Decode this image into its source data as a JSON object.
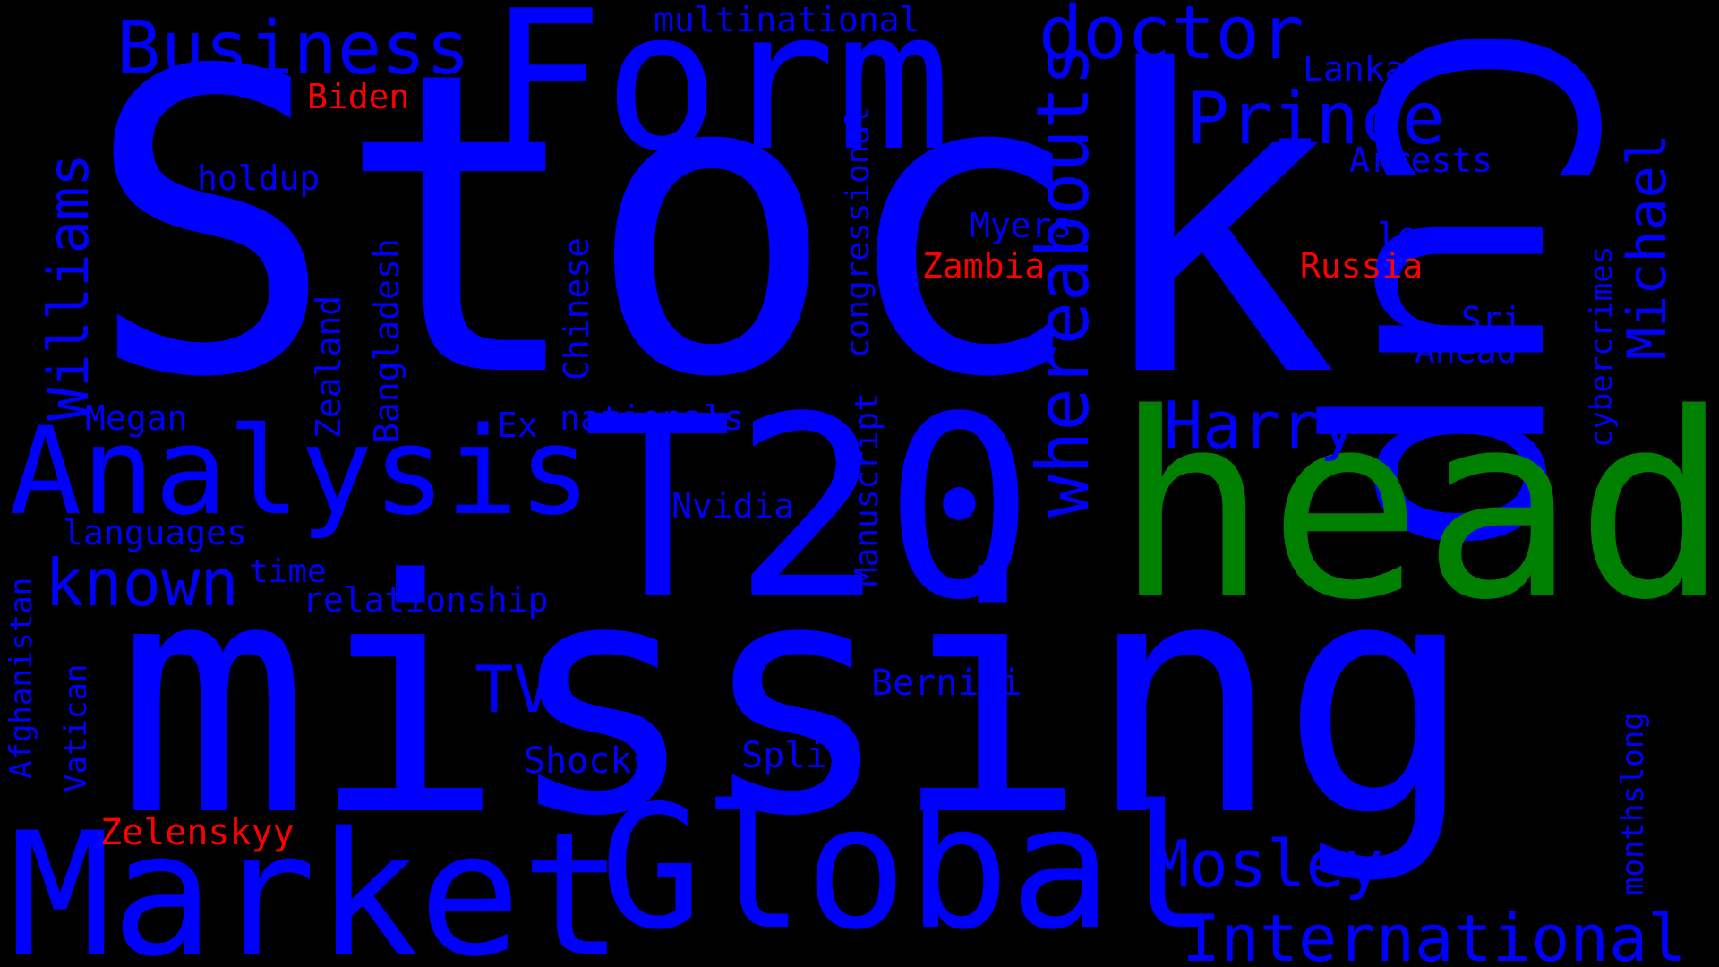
{
  "colors": {
    "background": "#000000",
    "blue": "#0000ff",
    "green": "#008000",
    "red": "#ff0000"
  },
  "words": [
    {
      "text": "Stock",
      "color": "blue"
    },
    {
      "text": "missing",
      "color": "blue"
    },
    {
      "text": "Cup",
      "color": "blue"
    },
    {
      "text": "head",
      "color": "green"
    },
    {
      "text": "T20",
      "color": "blue"
    },
    {
      "text": "Form",
      "color": "blue"
    },
    {
      "text": "Market",
      "color": "blue"
    },
    {
      "text": "Global",
      "color": "blue"
    },
    {
      "text": "Analysis",
      "color": "blue"
    },
    {
      "text": "whereabouts",
      "color": "blue"
    },
    {
      "text": "Business",
      "color": "blue"
    },
    {
      "text": "doctor",
      "color": "blue"
    },
    {
      "text": "Prince",
      "color": "blue"
    },
    {
      "text": "Michael",
      "color": "blue"
    },
    {
      "text": "Williams",
      "color": "blue"
    },
    {
      "text": "known",
      "color": "blue"
    },
    {
      "text": "Harry",
      "color": "blue"
    },
    {
      "text": "Mosley",
      "color": "blue"
    },
    {
      "text": "International",
      "color": "blue"
    },
    {
      "text": "TV",
      "color": "blue"
    },
    {
      "text": "multinational",
      "color": "blue"
    },
    {
      "text": "Biden",
      "color": "red"
    },
    {
      "text": "holdup",
      "color": "blue"
    },
    {
      "text": "Lanka",
      "color": "blue"
    },
    {
      "text": "Arrests",
      "color": "blue"
    },
    {
      "text": "congressional",
      "color": "blue"
    },
    {
      "text": "Myers",
      "color": "blue"
    },
    {
      "text": "Zambia",
      "color": "red"
    },
    {
      "text": "Russia",
      "color": "red"
    },
    {
      "text": "low",
      "color": "blue"
    },
    {
      "text": "Sri",
      "color": "blue"
    },
    {
      "text": "Ahead",
      "color": "blue"
    },
    {
      "text": "cybercrimes",
      "color": "blue"
    },
    {
      "text": "Chinese",
      "color": "blue"
    },
    {
      "text": "Bangladesh",
      "color": "blue"
    },
    {
      "text": "Zealand",
      "color": "blue"
    },
    {
      "text": "Megan",
      "color": "blue"
    },
    {
      "text": "Ex",
      "color": "blue"
    },
    {
      "text": "nationals",
      "color": "blue"
    },
    {
      "text": "Manuscript",
      "color": "blue"
    },
    {
      "text": "Nvidia",
      "color": "blue"
    },
    {
      "text": "languages",
      "color": "blue"
    },
    {
      "text": "time",
      "color": "blue"
    },
    {
      "text": "relationship",
      "color": "blue"
    },
    {
      "text": "Afghanistan",
      "color": "blue"
    },
    {
      "text": "Vatican",
      "color": "blue"
    },
    {
      "text": "Bernini",
      "color": "blue"
    },
    {
      "text": "Shocks",
      "color": "blue"
    },
    {
      "text": "Split",
      "color": "blue"
    },
    {
      "text": "monthslong",
      "color": "blue"
    },
    {
      "text": "Zelenskyy",
      "color": "red"
    }
  ]
}
